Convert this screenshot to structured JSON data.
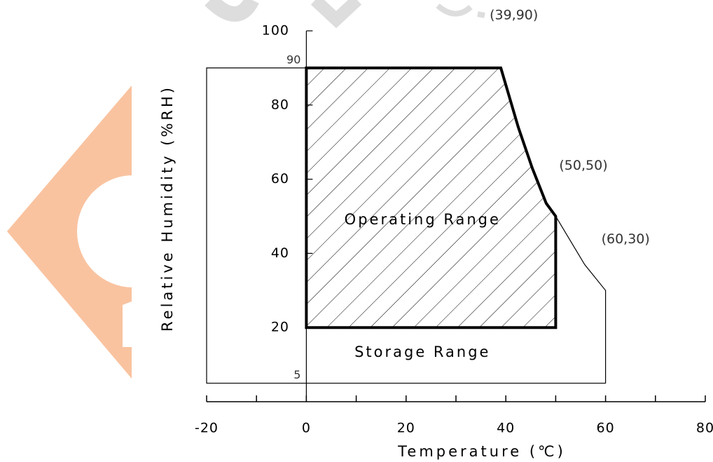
{
  "chart_data": {
    "type": "region",
    "x_label": "Temperature (℃)",
    "y_label": "Relative Humidity (%RH)",
    "xlim": [
      -20,
      80
    ],
    "ylim": [
      0,
      100
    ],
    "xticks": [
      -20,
      0,
      20,
      40,
      60,
      80
    ],
    "xminor_ticks": [
      -10,
      10,
      30,
      50,
      70
    ],
    "yticks": [
      20,
      40,
      60,
      80,
      100
    ],
    "y_marks": [
      90,
      5
    ],
    "series": [
      {
        "name": "Storage Range",
        "color": "#000000",
        "hatch": false,
        "x": [
          -20,
          39,
          42.5,
          45.3,
          48.1,
          50,
          55.8,
          60,
          60,
          -20
        ],
        "y": [
          90,
          90,
          74,
          63,
          53.5,
          50,
          37,
          30,
          5,
          5
        ]
      },
      {
        "name": "Operating Range",
        "color": "#000000",
        "hatch": true,
        "x": [
          0,
          39,
          42.5,
          45.3,
          48.1,
          50,
          50,
          0
        ],
        "y": [
          90,
          90,
          74,
          63,
          53.5,
          50,
          20,
          20
        ]
      }
    ],
    "annotations": [
      {
        "text": "(39,90)",
        "x": 39,
        "y": 90
      },
      {
        "text": "(50,50)",
        "x": 50,
        "y": 50
      },
      {
        "text": "(60,30)",
        "x": 60,
        "y": 30
      }
    ]
  }
}
